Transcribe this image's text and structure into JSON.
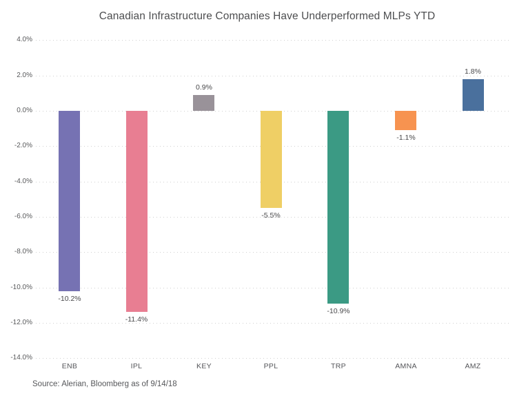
{
  "chart_data": {
    "type": "bar",
    "title": "Canadian Infrastructure Companies Have Underperformed MLPs YTD",
    "categories": [
      "ENB",
      "IPL",
      "KEY",
      "PPL",
      "TRP",
      "AMNA",
      "AMZ"
    ],
    "values": [
      -10.2,
      -11.4,
      0.9,
      -5.5,
      -10.9,
      -1.1,
      1.8
    ],
    "value_labels": [
      "-10.2%",
      "-11.4%",
      "0.9%",
      "-5.5%",
      "-10.9%",
      "-1.1%",
      "1.8%"
    ],
    "bar_colors": [
      "#7672b3",
      "#e87e92",
      "#999299",
      "#efcf65",
      "#3b9a84",
      "#f79350",
      "#4a709d"
    ],
    "xlabel": "",
    "ylabel": "",
    "ylim": [
      -14,
      4
    ],
    "ytick_values": [
      4,
      2,
      0,
      -2,
      -4,
      -6,
      -8,
      -10,
      -12,
      -14
    ],
    "ytick_labels": [
      "4.0%",
      "2.0%",
      "0.0%",
      "-2.0%",
      "-4.0%",
      "-6.0%",
      "-8.0%",
      "-10.0%",
      "-12.0%",
      "-14.0%"
    ],
    "grid": "horizontal-dotted",
    "legend_position": "none",
    "source_note": "Source: Alerian, Bloomberg as of 9/14/18"
  },
  "colors": {
    "background": "#ffffff",
    "gridline": "#cfcfcf",
    "title_text": "#4d4e50",
    "tick_text": "#57585a",
    "value_text": "#48484a",
    "source_text": "#56575a"
  }
}
